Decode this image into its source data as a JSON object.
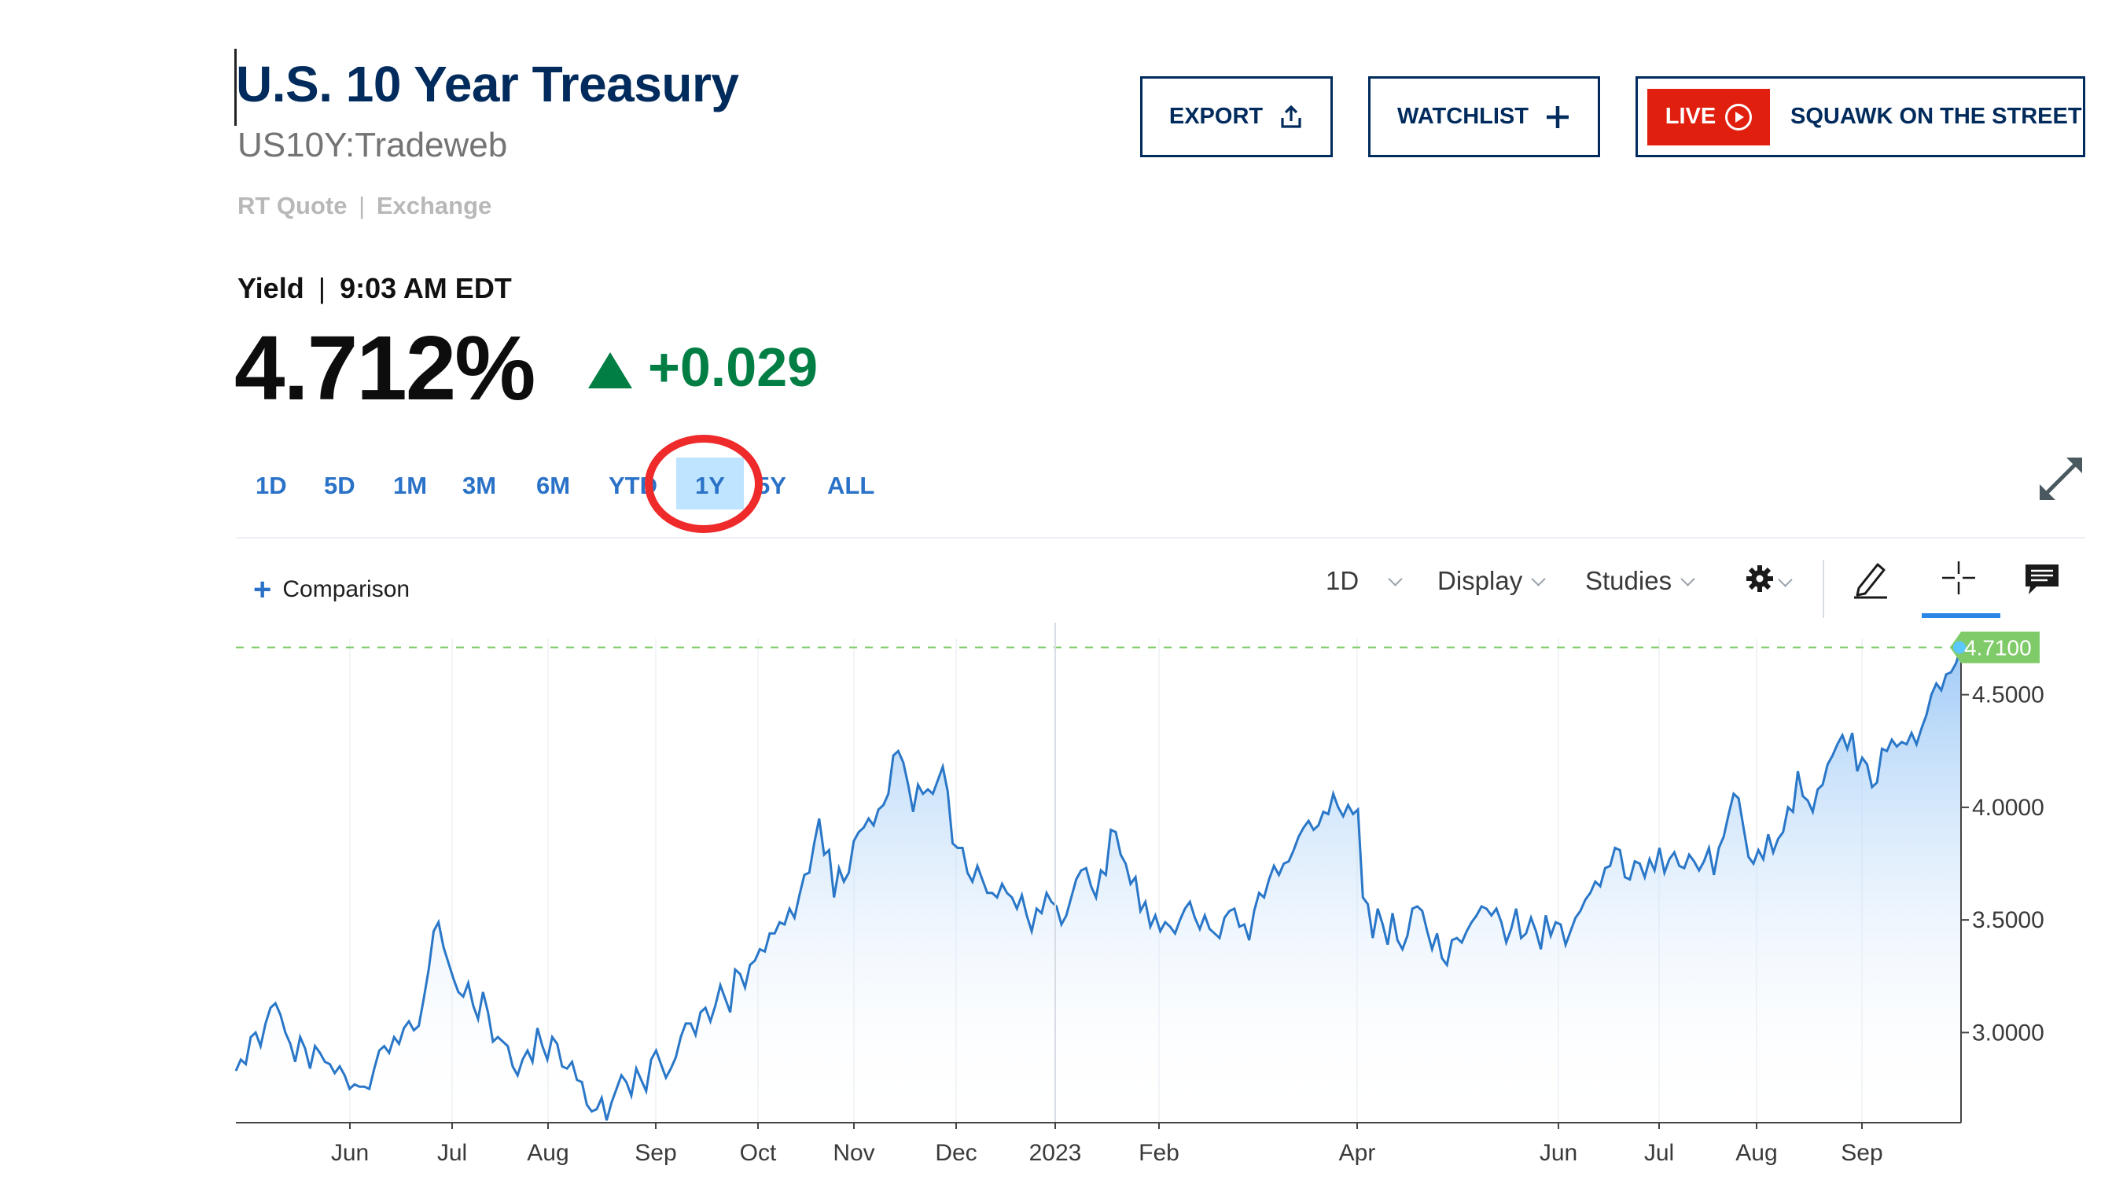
{
  "header": {
    "title": "U.S. 10 Year Treasury",
    "symbol": "US10Y:Tradeweb",
    "quote_type": "RT Quote",
    "quote_sep": "|",
    "quote_exchange": "Exchange"
  },
  "yield_info": {
    "label": "Yield",
    "sep": "|",
    "time": "9:03 AM EDT",
    "value": "4.712%",
    "change": "+0.029"
  },
  "actions": {
    "export_label": "EXPORT",
    "watchlist_label": "WATCHLIST",
    "live_label": "LIVE",
    "live_show": "SQUAWK ON THE STREET"
  },
  "range_tabs": [
    "1D",
    "5D",
    "1M",
    "3M",
    "6M",
    "YTD",
    "1Y",
    "5Y",
    "ALL"
  ],
  "active_range": "1Y",
  "toolbar": {
    "comparison_label": "Comparison",
    "interval_label": "1D",
    "display_label": "Display",
    "studies_label": "Studies"
  },
  "colors": {
    "brand": "#002b5c",
    "positive": "#007e44",
    "tab": "#2a72c7",
    "live": "#e01f0f",
    "line": "#2a77c8",
    "highlight_circle": "#ee2a2a",
    "price_tag": "#7fcb6a"
  },
  "icons": [
    "export-icon",
    "plus-icon",
    "play-icon",
    "expand-icon",
    "chevron-down-icon",
    "gear-icon",
    "pencil-icon",
    "crosshair-icon",
    "comment-icon"
  ],
  "chart_data": {
    "type": "area",
    "x_ticks": [
      "Jun",
      "Jul",
      "Aug",
      "Sep",
      "Oct",
      "Nov",
      "Dec",
      "2023",
      "Feb",
      "Apr",
      "Jun",
      "Jul",
      "Aug",
      "Sep"
    ],
    "y_ticks": [
      "4.5000",
      "4.0000",
      "3.5000",
      "3.0000"
    ],
    "ylim": [
      2.6,
      4.75
    ],
    "last_value": "4.7100",
    "series": [
      {
        "values": [
          2.83,
          2.88,
          2.86,
          2.98,
          3.0,
          2.94,
          3.04,
          3.11,
          3.13,
          3.08,
          3.0,
          2.95,
          2.87,
          2.98,
          2.93,
          2.84,
          2.94,
          2.91,
          2.87,
          2.86,
          2.82,
          2.85,
          2.81,
          2.75,
          2.77,
          2.76,
          2.76,
          2.75,
          2.84,
          2.92,
          2.94,
          2.91,
          2.98,
          2.95,
          3.02,
          3.05,
          3.01,
          3.03,
          3.15,
          3.28,
          3.45,
          3.49,
          3.38,
          3.31,
          3.24,
          3.18,
          3.16,
          3.22,
          3.12,
          3.06,
          3.18,
          3.09,
          2.96,
          2.98,
          2.96,
          2.94,
          2.85,
          2.81,
          2.88,
          2.92,
          2.87,
          3.02,
          2.94,
          2.88,
          2.98,
          2.95,
          2.85,
          2.84,
          2.87,
          2.79,
          2.78,
          2.68,
          2.65,
          2.66,
          2.71,
          2.61,
          2.69,
          2.75,
          2.81,
          2.78,
          2.72,
          2.84,
          2.79,
          2.74,
          2.88,
          2.92,
          2.86,
          2.8,
          2.84,
          2.89,
          2.98,
          3.04,
          3.04,
          2.99,
          3.09,
          3.11,
          3.05,
          3.12,
          3.21,
          3.15,
          3.09,
          3.28,
          3.26,
          3.2,
          3.3,
          3.32,
          3.37,
          3.36,
          3.44,
          3.44,
          3.49,
          3.48,
          3.55,
          3.51,
          3.61,
          3.7,
          3.71,
          3.84,
          3.95,
          3.79,
          3.81,
          3.6,
          3.73,
          3.67,
          3.71,
          3.85,
          3.89,
          3.91,
          3.95,
          3.92,
          3.99,
          4.01,
          4.06,
          4.23,
          4.25,
          4.2,
          4.1,
          3.98,
          4.1,
          4.06,
          4.08,
          4.06,
          4.12,
          4.18,
          4.07,
          3.84,
          3.82,
          3.82,
          3.71,
          3.67,
          3.74,
          3.68,
          3.62,
          3.62,
          3.6,
          3.66,
          3.62,
          3.6,
          3.55,
          3.61,
          3.52,
          3.45,
          3.55,
          3.53,
          3.62,
          3.58,
          3.56,
          3.48,
          3.52,
          3.6,
          3.68,
          3.72,
          3.73,
          3.65,
          3.6,
          3.72,
          3.7,
          3.9,
          3.89,
          3.79,
          3.75,
          3.66,
          3.69,
          3.54,
          3.58,
          3.47,
          3.52,
          3.45,
          3.49,
          3.47,
          3.44,
          3.5,
          3.55,
          3.58,
          3.51,
          3.46,
          3.52,
          3.46,
          3.44,
          3.42,
          3.51,
          3.54,
          3.55,
          3.47,
          3.48,
          3.41,
          3.54,
          3.62,
          3.6,
          3.68,
          3.74,
          3.7,
          3.75,
          3.76,
          3.81,
          3.87,
          3.91,
          3.94,
          3.9,
          3.92,
          3.98,
          3.97,
          4.06,
          4.0,
          3.96,
          4.01,
          3.97,
          3.99,
          3.6,
          3.57,
          3.42,
          3.55,
          3.48,
          3.39,
          3.53,
          3.41,
          3.37,
          3.43,
          3.55,
          3.56,
          3.54,
          3.45,
          3.37,
          3.44,
          3.33,
          3.3,
          3.41,
          3.42,
          3.4,
          3.45,
          3.49,
          3.52,
          3.56,
          3.55,
          3.52,
          3.55,
          3.49,
          3.4,
          3.46,
          3.55,
          3.42,
          3.44,
          3.51,
          3.45,
          3.37,
          3.52,
          3.43,
          3.49,
          3.48,
          3.39,
          3.45,
          3.51,
          3.54,
          3.59,
          3.62,
          3.67,
          3.65,
          3.73,
          3.74,
          3.82,
          3.81,
          3.69,
          3.68,
          3.76,
          3.75,
          3.69,
          3.77,
          3.72,
          3.82,
          3.71,
          3.77,
          3.8,
          3.74,
          3.73,
          3.79,
          3.76,
          3.72,
          3.76,
          3.82,
          3.7,
          3.82,
          3.87,
          3.97,
          4.06,
          4.04,
          3.91,
          3.78,
          3.75,
          3.81,
          3.77,
          3.88,
          3.8,
          3.86,
          3.89,
          4.0,
          3.98,
          4.16,
          4.05,
          4.03,
          3.98,
          4.08,
          4.1,
          4.19,
          4.23,
          4.28,
          4.32,
          4.26,
          4.33,
          4.16,
          4.22,
          4.19,
          4.09,
          4.11,
          4.26,
          4.25,
          4.3,
          4.27,
          4.29,
          4.28,
          4.33,
          4.28,
          4.35,
          4.41,
          4.5,
          4.55,
          4.52,
          4.59,
          4.6,
          4.64,
          4.71
        ]
      }
    ]
  }
}
